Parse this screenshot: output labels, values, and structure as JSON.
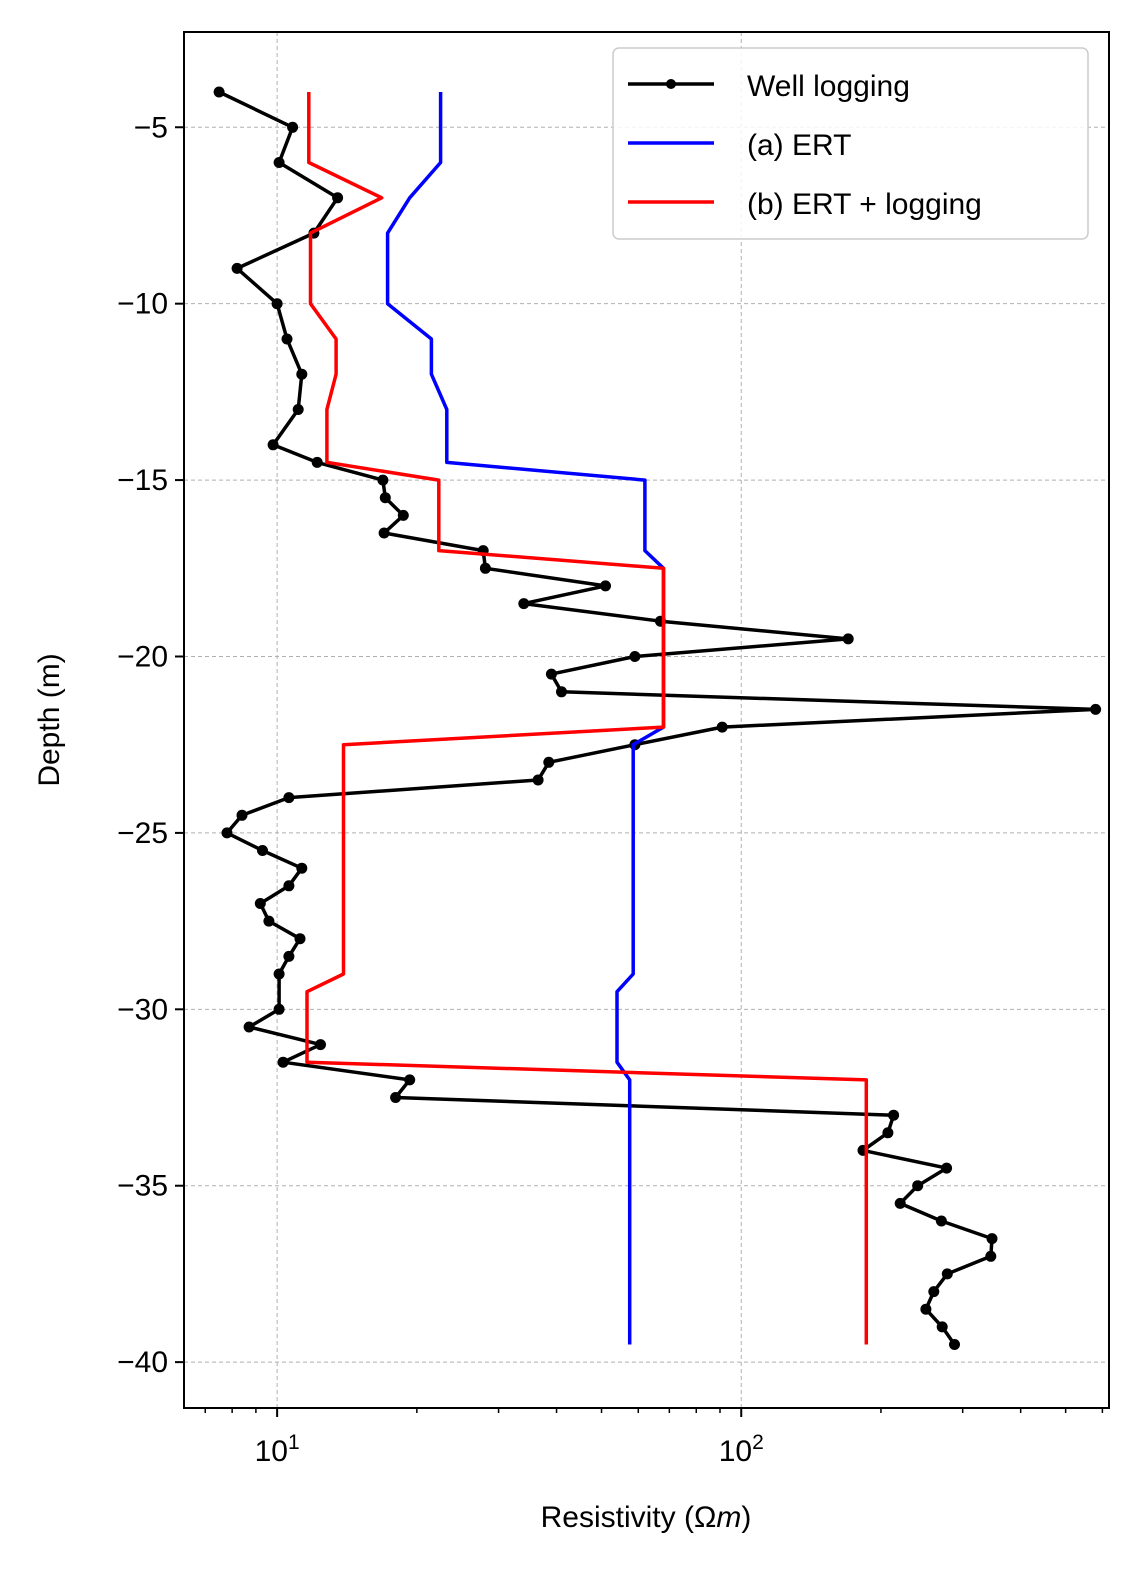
{
  "chart_data": {
    "type": "line",
    "title": "",
    "xlabel": "Resistivity (Ωm)",
    "xlabel_main": "Resistivity (Ω",
    "xlabel_italic": "m",
    "xlabel_close": ")",
    "ylabel": "Depth (m)",
    "xscale": "log",
    "xlim": [
      6.3,
      620
    ],
    "ylim": [
      -41.3,
      -2.3
    ],
    "grid": true,
    "legend_position": "top-right",
    "y_ticks": [
      {
        "value": -5,
        "label": "−5"
      },
      {
        "value": -10,
        "label": "−10"
      },
      {
        "value": -15,
        "label": "−15"
      },
      {
        "value": -20,
        "label": "−20"
      },
      {
        "value": -25,
        "label": "−25"
      },
      {
        "value": -30,
        "label": "−30"
      },
      {
        "value": -35,
        "label": "−35"
      },
      {
        "value": -40,
        "label": "−40"
      }
    ],
    "x_major_ticks": [
      {
        "value": 10,
        "base": "10",
        "exp": "1"
      },
      {
        "value": 100,
        "base": "10",
        "exp": "2"
      }
    ],
    "x_minor_ticks": [
      7,
      8,
      9,
      20,
      30,
      40,
      50,
      60,
      70,
      80,
      90,
      200,
      300,
      400,
      500,
      600
    ],
    "series": [
      {
        "name": "Well logging",
        "color": "#000000",
        "markers": true,
        "x": [
          7.5,
          10.8,
          10.1,
          13.5,
          12.0,
          8.2,
          10.0,
          10.5,
          11.3,
          11.1,
          9.8,
          12.2,
          16.9,
          17.1,
          18.7,
          17.0,
          27.8,
          28.1,
          51.0,
          34.0,
          67.0,
          170.0,
          59.0,
          39.0,
          41.0,
          580.0,
          91.0,
          59.0,
          38.5,
          36.5,
          10.6,
          8.4,
          7.8,
          9.3,
          11.3,
          10.6,
          9.2,
          9.6,
          11.2,
          10.6,
          10.1,
          10.1,
          8.7,
          12.4,
          10.3,
          19.3,
          18.0,
          213.0,
          207.0,
          183.0,
          277.0,
          240.0,
          220.0,
          270.0,
          347.0,
          345.0,
          278.0,
          260.0,
          250.0,
          271.0,
          288.0
        ],
        "y": [
          -4.0,
          -5.0,
          -6.0,
          -7.0,
          -8.0,
          -9.0,
          -10.0,
          -11.0,
          -12.0,
          -13.0,
          -14.0,
          -14.5,
          -15.0,
          -15.5,
          -16.0,
          -16.5,
          -17.0,
          -17.5,
          -18.0,
          -18.5,
          -19.0,
          -19.5,
          -20.0,
          -20.5,
          -21.0,
          -21.5,
          -22.0,
          -22.5,
          -23.0,
          -23.5,
          -24.0,
          -24.5,
          -25.0,
          -25.5,
          -26.0,
          -26.5,
          -27.0,
          -27.5,
          -28.0,
          -28.5,
          -29.0,
          -30.0,
          -30.5,
          -31.0,
          -31.5,
          -32.0,
          -32.5,
          -33.0,
          -33.5,
          -34.0,
          -34.5,
          -35.0,
          -35.5,
          -36.0,
          -36.5,
          -37.0,
          -37.5,
          -38.0,
          -38.5,
          -39.0,
          -39.5
        ]
      },
      {
        "name": "(a) ERT",
        "color": "#0000ff",
        "markers": false,
        "x": [
          22.5,
          22.5,
          19.3,
          17.3,
          17.3,
          21.5,
          21.5,
          23.2,
          23.2,
          62.0,
          62.0,
          68.0,
          68.0,
          58.5,
          58.5,
          54.0,
          54.0,
          57.5,
          57.5
        ],
        "y": [
          -4.0,
          -6.0,
          -7.0,
          -8.0,
          -10.0,
          -11.0,
          -12.0,
          -13.0,
          -14.5,
          -15.0,
          -17.0,
          -17.5,
          -22.0,
          -22.5,
          -29.0,
          -29.5,
          -31.5,
          -32.0,
          -39.5
        ]
      },
      {
        "name": "(b) ERT + logging",
        "color": "#ff0000",
        "markers": false,
        "x": [
          11.7,
          11.7,
          16.8,
          11.8,
          11.8,
          13.4,
          13.4,
          12.8,
          12.8,
          22.3,
          22.3,
          68.0,
          68.0,
          13.9,
          13.9,
          11.6,
          11.6,
          186.0,
          186.0
        ],
        "y": [
          -4.0,
          -6.0,
          -7.0,
          -8.0,
          -10.0,
          -11.0,
          -12.0,
          -13.0,
          -14.5,
          -15.0,
          -17.0,
          -17.5,
          -22.0,
          -22.5,
          -29.0,
          -29.5,
          -31.5,
          -32.0,
          -39.5
        ]
      }
    ]
  }
}
